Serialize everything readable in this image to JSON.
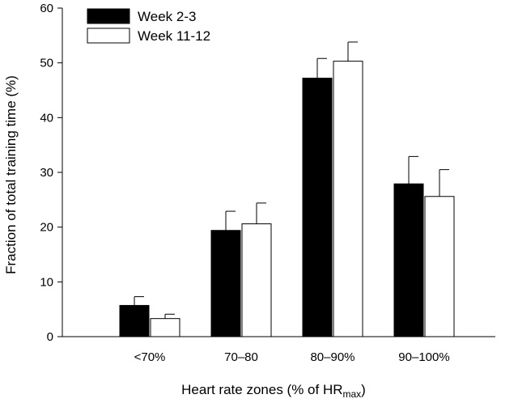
{
  "chart_data": {
    "type": "bar",
    "title": "",
    "xlabel": "Heart rate zones (% of HR",
    "xlabel_subscript": "max",
    "xlabel_suffix": ")",
    "ylabel": "Fraction of total training time (%)",
    "ylim": [
      0,
      60
    ],
    "yticks": [
      0,
      10,
      20,
      30,
      40,
      50,
      60
    ],
    "categories": [
      "<70%",
      "70–80",
      "80–90%",
      "90–100%"
    ],
    "series": [
      {
        "name": "Week 2-3",
        "values": [
          5.7,
          19.4,
          47.2,
          27.9
        ],
        "error": [
          1.6,
          3.5,
          3.6,
          5.0
        ],
        "fill": "#000000"
      },
      {
        "name": "Week 11-12",
        "values": [
          3.3,
          20.6,
          50.3,
          25.6
        ],
        "error": [
          0.8,
          3.8,
          3.5,
          4.9
        ],
        "fill": "#ffffff"
      }
    ],
    "grid": false,
    "legend_position": "top-left",
    "error_bars": "upper"
  }
}
